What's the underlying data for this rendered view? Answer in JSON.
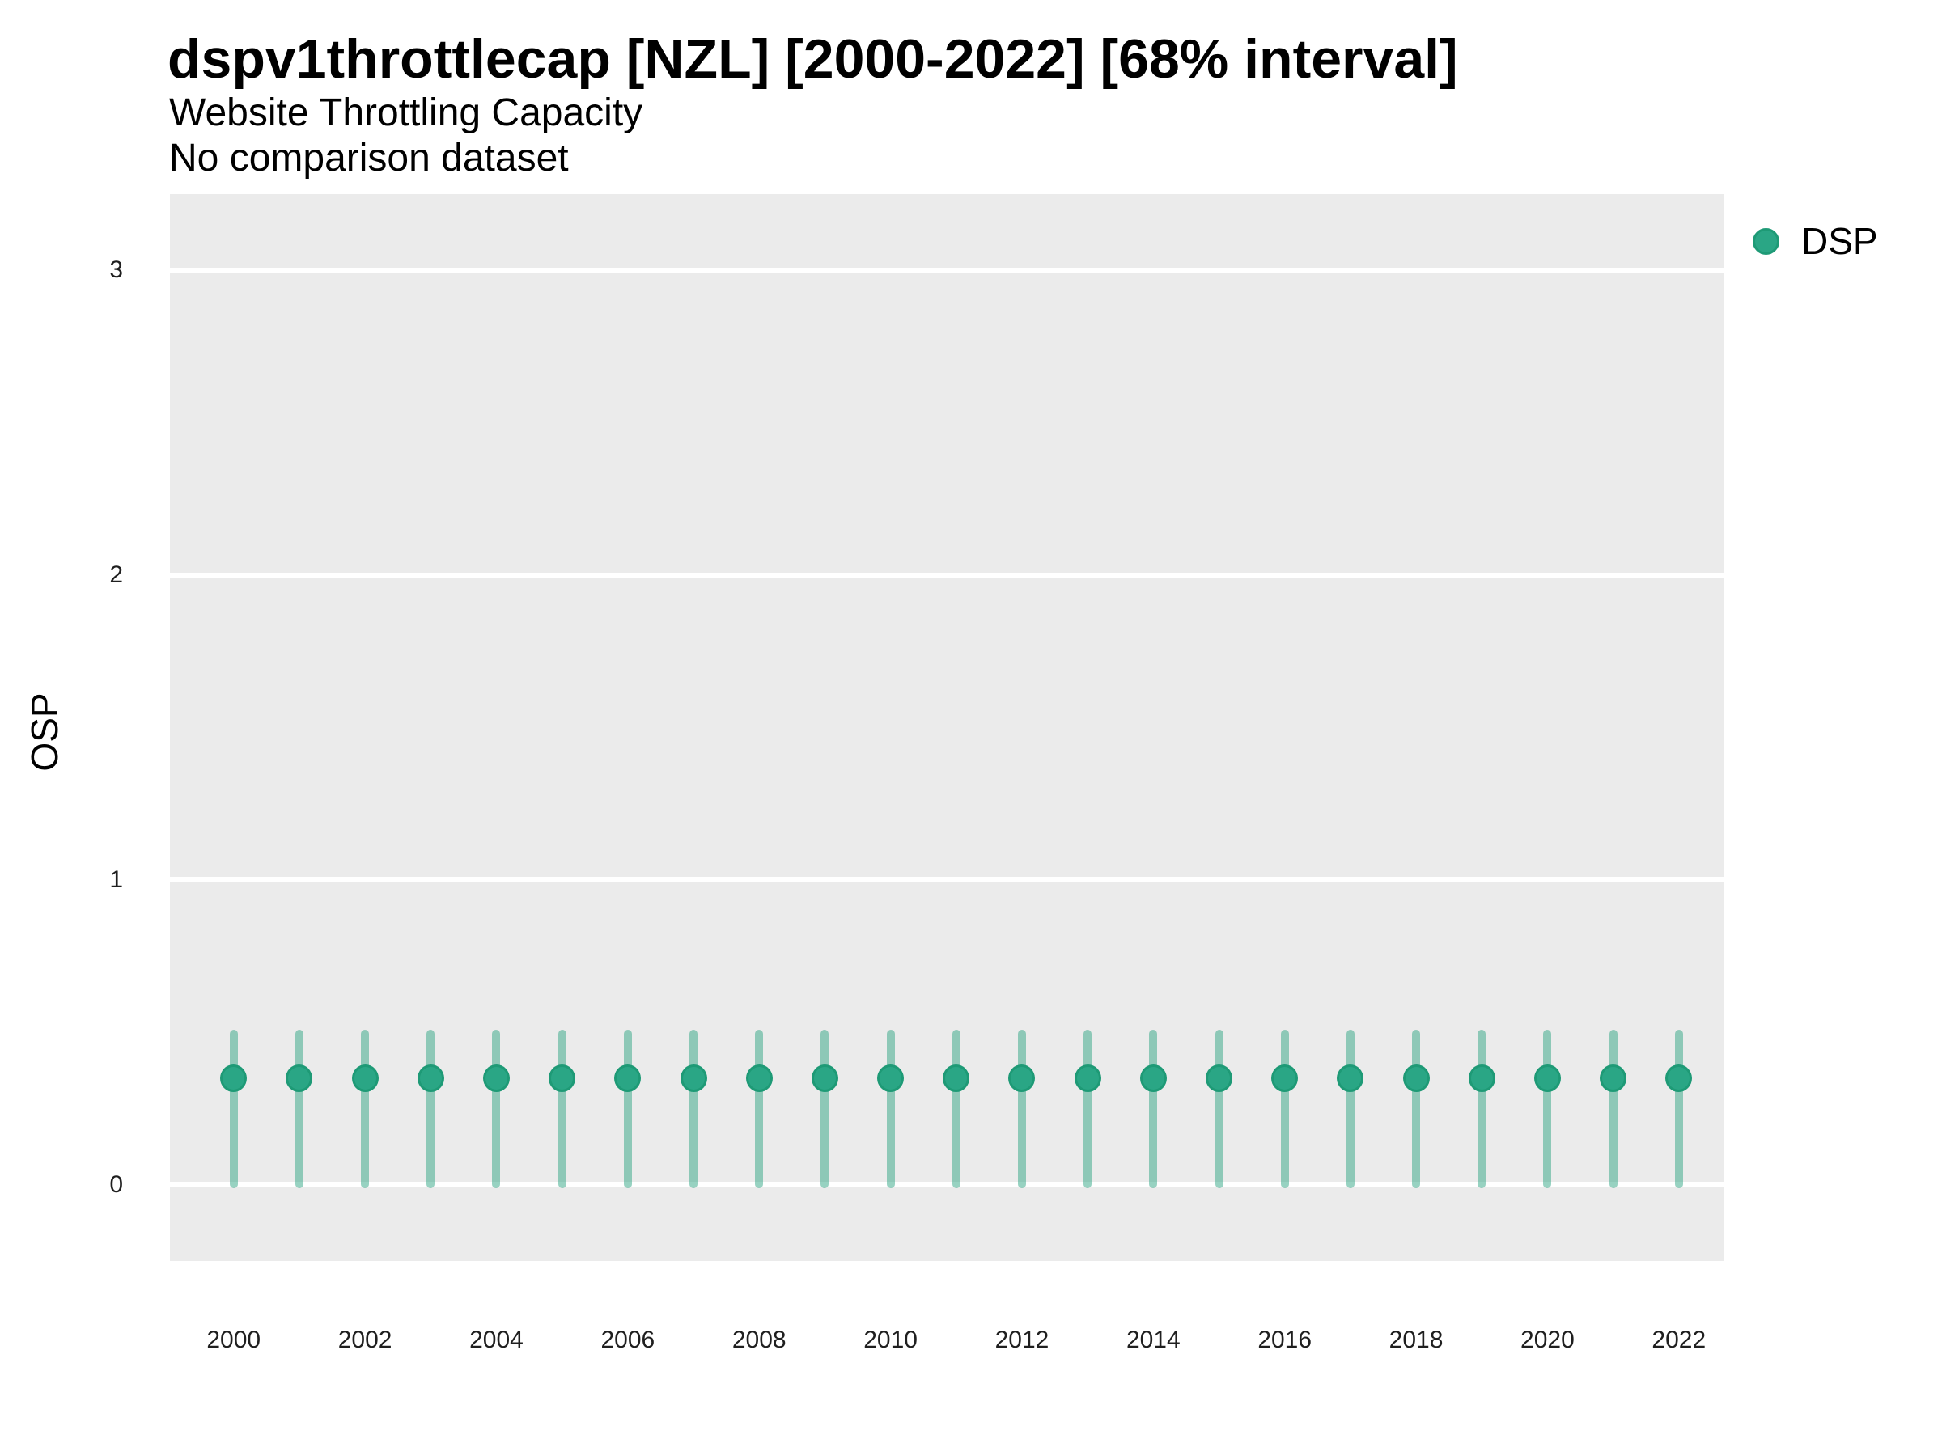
{
  "header": {
    "title": "dspv1throttlecap [NZL] [2000-2022] [68% interval]",
    "subtitle": "Website Throttling Capacity",
    "note": "No comparison dataset"
  },
  "legend": {
    "label": "DSP"
  },
  "chart_data": {
    "type": "scatter",
    "title": "dspv1throttlecap [NZL] [2000-2022] [68% interval]",
    "subtitle": "Website Throttling Capacity",
    "note": "No comparison dataset",
    "xlabel": "",
    "ylabel": "OSP",
    "xlim": [
      1999.03,
      2022.68
    ],
    "ylim": [
      -0.25,
      3.25
    ],
    "xticks": [
      2000,
      2002,
      2004,
      2006,
      2008,
      2010,
      2012,
      2014,
      2016,
      2018,
      2020,
      2022
    ],
    "yticks": [
      0,
      1,
      2,
      3
    ],
    "grid": "horizontal major gridlines only, white on gray panel",
    "legend_position": "right",
    "interval_label": "68% interval",
    "series": [
      {
        "name": "DSP",
        "points": [
          {
            "year": 2000,
            "mid": 0.35,
            "lo": 0.0,
            "hi": 0.51
          },
          {
            "year": 2001,
            "mid": 0.35,
            "lo": 0.0,
            "hi": 0.51
          },
          {
            "year": 2002,
            "mid": 0.35,
            "lo": 0.0,
            "hi": 0.51
          },
          {
            "year": 2003,
            "mid": 0.35,
            "lo": 0.0,
            "hi": 0.51
          },
          {
            "year": 2004,
            "mid": 0.35,
            "lo": 0.0,
            "hi": 0.51
          },
          {
            "year": 2005,
            "mid": 0.35,
            "lo": 0.0,
            "hi": 0.51
          },
          {
            "year": 2006,
            "mid": 0.35,
            "lo": 0.0,
            "hi": 0.51
          },
          {
            "year": 2007,
            "mid": 0.35,
            "lo": 0.0,
            "hi": 0.51
          },
          {
            "year": 2008,
            "mid": 0.35,
            "lo": 0.0,
            "hi": 0.51
          },
          {
            "year": 2009,
            "mid": 0.35,
            "lo": 0.0,
            "hi": 0.51
          },
          {
            "year": 2010,
            "mid": 0.35,
            "lo": 0.0,
            "hi": 0.51
          },
          {
            "year": 2011,
            "mid": 0.35,
            "lo": 0.0,
            "hi": 0.51
          },
          {
            "year": 2012,
            "mid": 0.35,
            "lo": 0.0,
            "hi": 0.51
          },
          {
            "year": 2013,
            "mid": 0.35,
            "lo": 0.0,
            "hi": 0.51
          },
          {
            "year": 2014,
            "mid": 0.35,
            "lo": 0.0,
            "hi": 0.51
          },
          {
            "year": 2015,
            "mid": 0.35,
            "lo": 0.0,
            "hi": 0.51
          },
          {
            "year": 2016,
            "mid": 0.35,
            "lo": 0.0,
            "hi": 0.51
          },
          {
            "year": 2017,
            "mid": 0.35,
            "lo": 0.0,
            "hi": 0.51
          },
          {
            "year": 2018,
            "mid": 0.35,
            "lo": 0.0,
            "hi": 0.51
          },
          {
            "year": 2019,
            "mid": 0.35,
            "lo": 0.0,
            "hi": 0.51
          },
          {
            "year": 2020,
            "mid": 0.35,
            "lo": 0.0,
            "hi": 0.51
          },
          {
            "year": 2021,
            "mid": 0.35,
            "lo": 0.0,
            "hi": 0.51
          },
          {
            "year": 2022,
            "mid": 0.35,
            "lo": 0.0,
            "hi": 0.51
          }
        ]
      }
    ],
    "colors": {
      "panel_bg": "#EBEBEB",
      "gridline": "#FFFFFF",
      "point_fill": "#2AA685",
      "point_stroke": "#1E9A76",
      "interval_color": "#2FA583",
      "interval_opacity": 0.5,
      "title_text": "#000000",
      "tick_text": "#1F1F1F"
    }
  }
}
